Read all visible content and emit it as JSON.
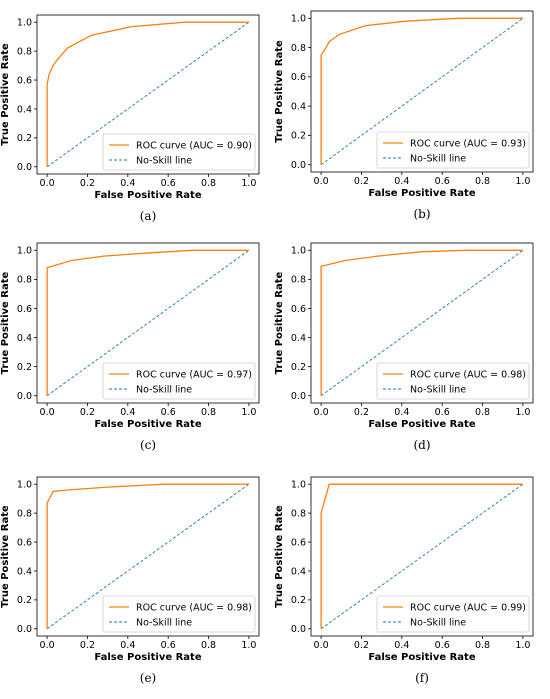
{
  "panels": [
    {
      "caption": "(a)",
      "chart_data": {
        "type": "line",
        "xlabel": "False Positive Rate",
        "ylabel": "True Positive Rate",
        "xlim": [
          0.0,
          1.0
        ],
        "ylim": [
          0.0,
          1.0
        ],
        "xticks": [
          "0.0",
          "0.2",
          "0.4",
          "0.6",
          "0.8",
          "1.0"
        ],
        "yticks": [
          "0.0",
          "0.2",
          "0.4",
          "0.6",
          "0.8",
          "1.0"
        ],
        "grid": false,
        "legend_position": "lower-right",
        "series": [
          {
            "name": "ROC curve (AUC = 0.90)",
            "color": "#ff7f0e",
            "style": "solid",
            "x": [
              0.0,
              0.0,
              0.01,
              0.03,
              0.05,
              0.1,
              0.22,
              0.42,
              0.68,
              1.0
            ],
            "y": [
              0.0,
              0.57,
              0.64,
              0.7,
              0.74,
              0.82,
              0.91,
              0.97,
              1.0,
              1.0
            ]
          },
          {
            "name": "No-Skill line",
            "color": "#1f77b4",
            "style": "dashed",
            "x": [
              0.0,
              1.0
            ],
            "y": [
              0.0,
              1.0
            ]
          }
        ]
      }
    },
    {
      "caption": "(b)",
      "chart_data": {
        "type": "line",
        "xlabel": "False Positive Rate",
        "ylabel": "True Positive Rate",
        "xlim": [
          0.0,
          1.0
        ],
        "ylim": [
          0.0,
          1.0
        ],
        "xticks": [
          "0.0",
          "0.2",
          "0.4",
          "0.6",
          "0.8",
          "1.0"
        ],
        "yticks": [
          "0.0",
          "0.2",
          "0.4",
          "0.6",
          "0.8",
          "1.0"
        ],
        "grid": false,
        "legend_position": "lower-right",
        "series": [
          {
            "name": "ROC curve (AUC = 0.93)",
            "color": "#ff7f0e",
            "style": "solid",
            "x": [
              0.0,
              0.0,
              0.02,
              0.04,
              0.09,
              0.22,
              0.42,
              0.68,
              1.0
            ],
            "y": [
              0.0,
              0.75,
              0.79,
              0.84,
              0.89,
              0.95,
              0.98,
              1.0,
              1.0
            ]
          },
          {
            "name": "No-Skill line",
            "color": "#1f77b4",
            "style": "dashed",
            "x": [
              0.0,
              1.0
            ],
            "y": [
              0.0,
              1.0
            ]
          }
        ]
      }
    },
    {
      "caption": "(c)",
      "chart_data": {
        "type": "line",
        "xlabel": "False Positive Rate",
        "ylabel": "True Positive Rate",
        "xlim": [
          0.0,
          1.0
        ],
        "ylim": [
          0.0,
          1.0
        ],
        "xticks": [
          "0.0",
          "0.2",
          "0.4",
          "0.6",
          "0.8",
          "1.0"
        ],
        "yticks": [
          "0.0",
          "0.2",
          "0.4",
          "0.6",
          "0.8",
          "1.0"
        ],
        "grid": false,
        "legend_position": "lower-right",
        "series": [
          {
            "name": "ROC curve (AUC = 0.97)",
            "color": "#ff7f0e",
            "style": "solid",
            "x": [
              0.0,
              0.0,
              0.12,
              0.28,
              0.48,
              0.72,
              1.0
            ],
            "y": [
              0.0,
              0.88,
              0.93,
              0.96,
              0.98,
              1.0,
              1.0
            ]
          },
          {
            "name": "No-Skill line",
            "color": "#1f77b4",
            "style": "dashed",
            "x": [
              0.0,
              1.0
            ],
            "y": [
              0.0,
              1.0
            ]
          }
        ]
      }
    },
    {
      "caption": "(d)",
      "chart_data": {
        "type": "line",
        "xlabel": "False Positive Rate",
        "ylabel": "True Positive Rate",
        "xlim": [
          0.0,
          1.0
        ],
        "ylim": [
          0.0,
          1.0
        ],
        "xticks": [
          "0.0",
          "0.2",
          "0.4",
          "0.6",
          "0.8",
          "1.0"
        ],
        "yticks": [
          "0.0",
          "0.2",
          "0.4",
          "0.6",
          "0.8",
          "1.0"
        ],
        "grid": false,
        "legend_position": "lower-right",
        "series": [
          {
            "name": "ROC curve (AUC = 0.98)",
            "color": "#ff7f0e",
            "style": "solid",
            "x": [
              0.0,
              0.0,
              0.12,
              0.28,
              0.5,
              0.72,
              1.0
            ],
            "y": [
              0.0,
              0.89,
              0.93,
              0.96,
              0.99,
              1.0,
              1.0
            ]
          },
          {
            "name": "No-Skill line",
            "color": "#1f77b4",
            "style": "dashed",
            "x": [
              0.0,
              1.0
            ],
            "y": [
              0.0,
              1.0
            ]
          }
        ]
      }
    },
    {
      "caption": "(e)",
      "chart_data": {
        "type": "line",
        "xlabel": "False Positive Rate",
        "ylabel": "True Positive Rate",
        "xlim": [
          0.0,
          1.0
        ],
        "ylim": [
          0.0,
          1.0
        ],
        "xticks": [
          "0.0",
          "0.2",
          "0.4",
          "0.6",
          "0.8",
          "1.0"
        ],
        "yticks": [
          "0.0",
          "0.2",
          "0.4",
          "0.6",
          "0.8",
          "1.0"
        ],
        "grid": false,
        "legend_position": "lower-right",
        "series": [
          {
            "name": "ROC curve (AUC = 0.98)",
            "color": "#ff7f0e",
            "style": "solid",
            "x": [
              0.0,
              0.0,
              0.03,
              0.1,
              0.3,
              0.58,
              1.0
            ],
            "y": [
              0.0,
              0.87,
              0.95,
              0.96,
              0.98,
              1.0,
              1.0
            ]
          },
          {
            "name": "No-Skill line",
            "color": "#1f77b4",
            "style": "dashed",
            "x": [
              0.0,
              1.0
            ],
            "y": [
              0.0,
              1.0
            ]
          }
        ]
      }
    },
    {
      "caption": "(f)",
      "chart_data": {
        "type": "line",
        "xlabel": "False Positive Rate",
        "ylabel": "True Positive Rate",
        "xlim": [
          0.0,
          1.0
        ],
        "ylim": [
          0.0,
          1.0
        ],
        "xticks": [
          "0.0",
          "0.2",
          "0.4",
          "0.6",
          "0.8",
          "1.0"
        ],
        "yticks": [
          "0.0",
          "0.2",
          "0.4",
          "0.6",
          "0.8",
          "1.0"
        ],
        "grid": false,
        "legend_position": "lower-right",
        "series": [
          {
            "name": "ROC curve (AUC = 0.99)",
            "color": "#ff7f0e",
            "style": "solid",
            "x": [
              0.0,
              0.0,
              0.04,
              1.0
            ],
            "y": [
              0.0,
              0.8,
              1.0,
              1.0
            ]
          },
          {
            "name": "No-Skill line",
            "color": "#1f77b4",
            "style": "dashed",
            "x": [
              0.0,
              1.0
            ],
            "y": [
              0.0,
              1.0
            ]
          }
        ]
      }
    }
  ]
}
